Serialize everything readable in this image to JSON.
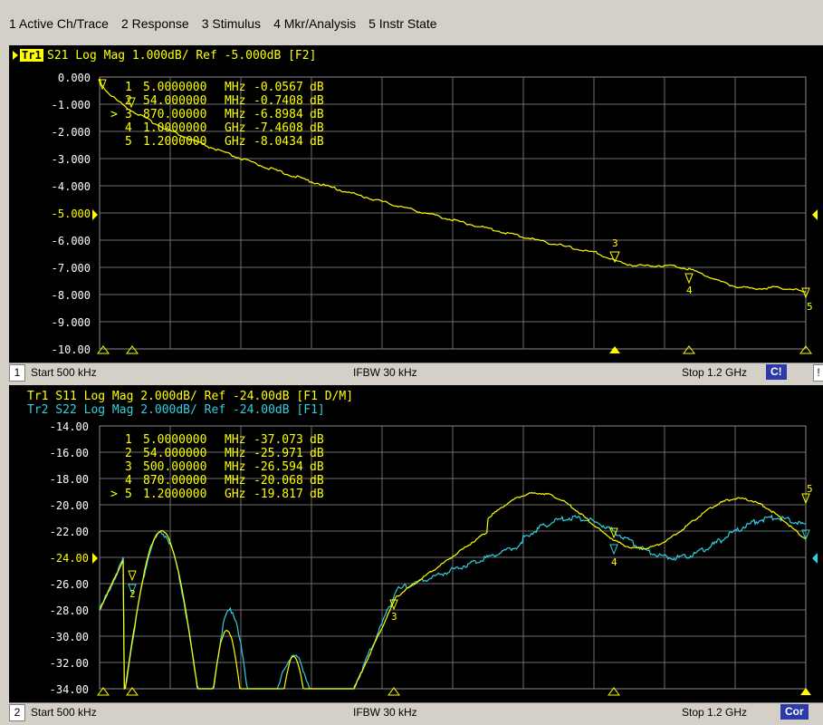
{
  "menu": [
    "1 Active Ch/Trace",
    "2 Response",
    "3 Stimulus",
    "4 Mkr/Analysis",
    "5 Instr State"
  ],
  "colors": {
    "trace1": "#ffff00",
    "trace2": "#30d0e0",
    "grid": "#7a7a7a",
    "background": "#000000"
  },
  "ch1": {
    "trace_label": "Tr1",
    "header": "S21 Log Mag 1.000dB/ Ref -5.000dB [F2]",
    "ylabels": [
      "0.000",
      "-1.000",
      "-2.000",
      "-3.000",
      "-4.000",
      "-5.000",
      "-6.000",
      "-7.000",
      "-8.000",
      "-9.000",
      "-10.00"
    ],
    "markers": [
      {
        "n": "1",
        "prefix": "",
        "freq": "5.0000000",
        "unit": "MHz",
        "val": "-0.0567",
        "vunit": "dB"
      },
      {
        "n": "2",
        "prefix": "",
        "freq": "54.000000",
        "unit": "MHz",
        "val": "-0.7408",
        "vunit": "dB"
      },
      {
        "n": "3",
        "prefix": ">",
        "freq": "870.00000",
        "unit": "MHz",
        "val": "-6.8984",
        "vunit": "dB"
      },
      {
        "n": "4",
        "prefix": "",
        "freq": "1.0000000",
        "unit": "GHz",
        "val": "-7.4608",
        "vunit": "dB"
      },
      {
        "n": "5",
        "prefix": "",
        "freq": "1.2000000",
        "unit": "GHz",
        "val": "-8.0434",
        "vunit": "dB"
      }
    ],
    "status": {
      "num": "1",
      "start": "Start 500 kHz",
      "ifbw": "IFBW 30 kHz",
      "stop": "Stop 1.2 GHz",
      "badge": "C!",
      "extra": "!"
    }
  },
  "ch2": {
    "header1": "Tr1 S11 Log Mag 2.000dB/ Ref -24.00dB [F1 D/M]",
    "header2": "Tr2 S22 Log Mag 2.000dB/ Ref -24.00dB [F1]",
    "ylabels": [
      "-14.00",
      "-16.00",
      "-18.00",
      "-20.00",
      "-22.00",
      "-24.00",
      "-26.00",
      "-28.00",
      "-30.00",
      "-32.00",
      "-34.00"
    ],
    "markers": [
      {
        "n": "1",
        "prefix": "",
        "freq": "5.0000000",
        "unit": "MHz",
        "val": "-37.073",
        "vunit": "dB"
      },
      {
        "n": "2",
        "prefix": "",
        "freq": "54.000000",
        "unit": "MHz",
        "val": "-25.971",
        "vunit": "dB"
      },
      {
        "n": "3",
        "prefix": "",
        "freq": "500.00000",
        "unit": "MHz",
        "val": "-26.594",
        "vunit": "dB"
      },
      {
        "n": "4",
        "prefix": "",
        "freq": "870.00000",
        "unit": "MHz",
        "val": "-20.068",
        "vunit": "dB"
      },
      {
        "n": "5",
        "prefix": ">",
        "freq": "1.2000000",
        "unit": "GHz",
        "val": "-19.817",
        "vunit": "dB"
      }
    ],
    "status": {
      "num": "2",
      "start": "Start 500 kHz",
      "ifbw": "IFBW 30 kHz",
      "stop": "Stop 1.2 GHz",
      "badge": "Cor"
    }
  }
}
